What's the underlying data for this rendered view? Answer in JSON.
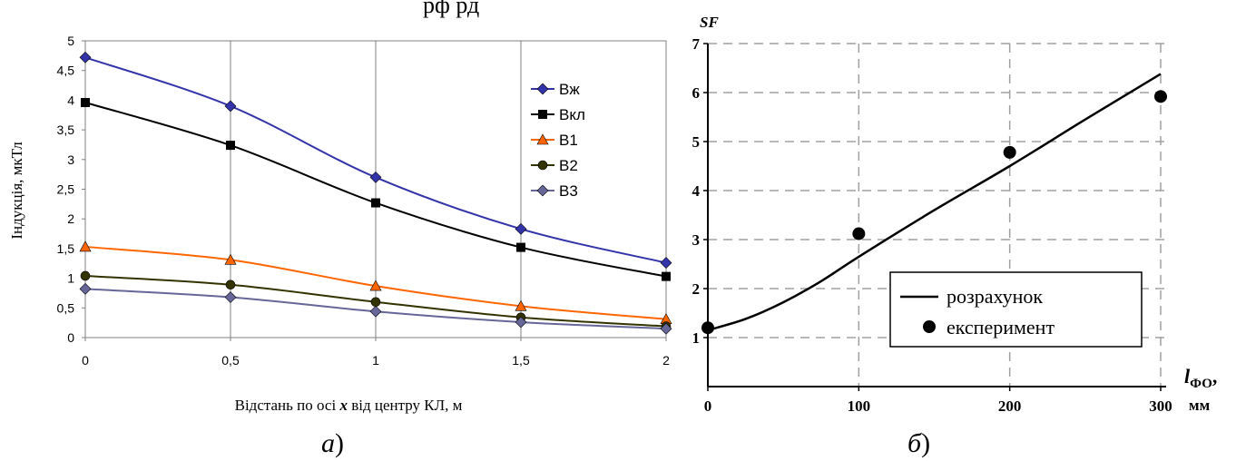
{
  "top_text": "рф              рд",
  "panel_a": {
    "caption_letter": "а",
    "caption_paren": ")",
    "ylabel": "Індукція, мкТл",
    "xlabel_pre": "Відстань по осі ",
    "xlabel_var": "x",
    "xlabel_post": " від центру КЛ, м"
  },
  "panel_b": {
    "caption_letter": "б",
    "caption_paren": ")",
    "ylabel": "SF",
    "xlabel_main": "l",
    "xlabel_sub": "ФО",
    "xlabel_comma": ",",
    "xlabel_unit": "мм"
  },
  "chart_data": [
    {
      "type": "line",
      "x": [
        0,
        0.5,
        1,
        1.5,
        2
      ],
      "x_tick_labels": [
        "0",
        "0,5",
        "1",
        "1,5",
        "2"
      ],
      "y_tick_labels": [
        "0",
        "0,5",
        "1",
        "1,5",
        "2",
        "2,5",
        "3",
        "3,5",
        "4",
        "4,5",
        "5"
      ],
      "xlim": [
        0,
        2
      ],
      "ylim": [
        0,
        5
      ],
      "grid": "vertical",
      "legend_position": "right",
      "xlabel": "Відстань по осі x від центру КЛ, м",
      "ylabel": "Індукція, мкТл",
      "series": [
        {
          "name": "Вж",
          "values": [
            4.72,
            3.9,
            2.7,
            1.83,
            1.26
          ],
          "color": "#3333aa",
          "marker": "diamond"
        },
        {
          "name": "Вкл",
          "values": [
            3.96,
            3.24,
            2.27,
            1.52,
            1.03
          ],
          "color": "#000000",
          "marker": "square"
        },
        {
          "name": "В1",
          "values": [
            1.53,
            1.31,
            0.87,
            0.53,
            0.31
          ],
          "color": "#ff6600",
          "marker": "triangle"
        },
        {
          "name": "В2",
          "values": [
            1.04,
            0.89,
            0.6,
            0.34,
            0.19
          ],
          "color": "#333300",
          "marker": "circle"
        },
        {
          "name": "В3",
          "values": [
            0.82,
            0.68,
            0.44,
            0.26,
            0.15
          ],
          "color": "#666699",
          "marker": "diamond"
        }
      ]
    },
    {
      "type": "scatter",
      "xlim": [
        0,
        300
      ],
      "ylim": [
        0,
        7
      ],
      "x_ticks": [
        0,
        100,
        200,
        300
      ],
      "y_ticks": [
        1,
        2,
        3,
        4,
        5,
        6,
        7
      ],
      "grid": "dashed",
      "legend_position": "bottom-right",
      "ylabel": "SF",
      "xlabel": "lФО, мм",
      "series": [
        {
          "name": "розрахунок",
          "style": "line",
          "x": [
            0,
            25,
            50,
            75,
            100,
            150,
            200,
            250,
            300
          ],
          "values": [
            1.15,
            1.38,
            1.72,
            2.15,
            2.65,
            3.6,
            4.5,
            5.45,
            6.38
          ]
        },
        {
          "name": "експеримент",
          "style": "points",
          "x": [
            0,
            100,
            200,
            300
          ],
          "values": [
            1.2,
            3.12,
            4.78,
            5.92
          ]
        }
      ]
    }
  ]
}
